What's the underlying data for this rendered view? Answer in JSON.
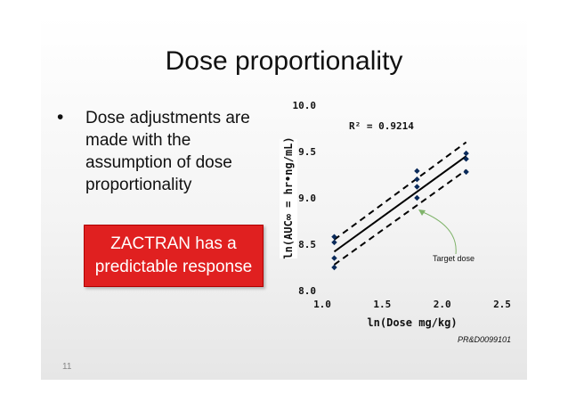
{
  "slide": {
    "title": "Dose proportionality",
    "bullet": "Dose adjustments are\nmade with the\nassumption of dose\nproportionality",
    "callout": "ZACTRAN has a\npredictable response",
    "code": "PR&D0099101",
    "page_number": "11",
    "colors": {
      "callout": "#e02020",
      "points": "#0a2a5a",
      "line": "#000000"
    }
  },
  "chart_data": {
    "type": "scatter",
    "xlabel": "ln(Dose mg/kg)",
    "ylabel": "ln(AUC∞ = hr•ng/mL)",
    "xlim": [
      1.0,
      2.5
    ],
    "ylim": [
      8.0,
      10.0
    ],
    "x_ticks": [
      "1.0",
      "1.5",
      "2.0",
      "2.5"
    ],
    "y_ticks": [
      "8.0",
      "8.5",
      "9.0",
      "9.5",
      "10.0"
    ],
    "annotations": {
      "r2": "R² = 0.9214",
      "target": "Target dose"
    },
    "points": [
      {
        "x": 1.1,
        "y": 8.58
      },
      {
        "x": 1.1,
        "y": 8.52
      },
      {
        "x": 1.1,
        "y": 8.35
      },
      {
        "x": 1.1,
        "y": 8.25
      },
      {
        "x": 1.79,
        "y": 9.29
      },
      {
        "x": 1.79,
        "y": 9.2
      },
      {
        "x": 1.79,
        "y": 9.12
      },
      {
        "x": 1.79,
        "y": 9.0
      },
      {
        "x": 2.2,
        "y": 9.48
      },
      {
        "x": 2.2,
        "y": 9.42
      },
      {
        "x": 2.2,
        "y": 9.28
      }
    ],
    "fit_line": [
      {
        "x": 1.1,
        "y": 8.42
      },
      {
        "x": 2.2,
        "y": 9.45
      }
    ],
    "upper_band": [
      {
        "x": 1.1,
        "y": 8.55
      },
      {
        "x": 2.2,
        "y": 9.6
      }
    ],
    "lower_band": [
      {
        "x": 1.1,
        "y": 8.28
      },
      {
        "x": 2.2,
        "y": 9.3
      }
    ],
    "grid": false,
    "legend": "none"
  }
}
